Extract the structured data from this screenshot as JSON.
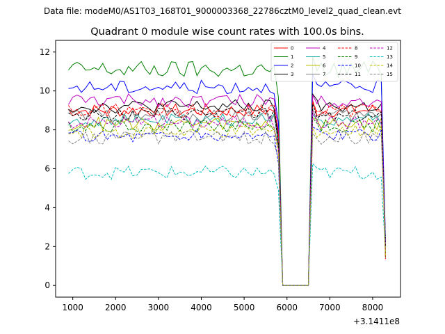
{
  "chart_data": {
    "type": "line",
    "suptitle": "Data file: modeM0/AS1T03_168T01_9000003368_22786cztM0_level2_quad_clean.evt",
    "title": "Quadrant 0 module wise count rates with 100.0s bins.",
    "xlabel": "",
    "ylabel": "",
    "x_offset_label": "+3.1411e8",
    "xlim": [
      600,
      8650
    ],
    "ylim": [
      -0.6,
      12.6
    ],
    "xticks": [
      1000,
      2000,
      3000,
      4000,
      5000,
      6000,
      7000,
      8000
    ],
    "yticks": [
      0,
      2,
      4,
      6,
      8,
      10,
      12
    ],
    "x_start": 900,
    "x_step": 100,
    "legend_position": "top-right",
    "gap_x": [
      5900,
      6000,
      6100,
      6200,
      6300,
      6400,
      6500
    ],
    "series": [
      {
        "name": "0",
        "color": "#ff0000",
        "dash": "solid",
        "level": 9.0
      },
      {
        "name": "1",
        "color": "#008000",
        "dash": "solid",
        "level": 11.1
      },
      {
        "name": "2",
        "color": "#0000ff",
        "dash": "solid",
        "level": 10.2
      },
      {
        "name": "3",
        "color": "#000000",
        "dash": "solid",
        "level": 9.2
      },
      {
        "name": "4",
        "color": "#bf00bf",
        "dash": "solid",
        "level": 9.5
      },
      {
        "name": "5",
        "color": "#20b2aa",
        "dash": "solid",
        "level": 8.5
      },
      {
        "name": "6",
        "color": "#bfbf00",
        "dash": "solid",
        "level": 8.3
      },
      {
        "name": "7",
        "color": "#808080",
        "dash": "solid",
        "level": 8.7
      },
      {
        "name": "8",
        "color": "#ff0000",
        "dash": "dashed",
        "level": 9.0
      },
      {
        "name": "9",
        "color": "#008000",
        "dash": "dashed",
        "level": 8.2
      },
      {
        "name": "10",
        "color": "#0000ff",
        "dash": "dashed",
        "level": 7.7
      },
      {
        "name": "11",
        "color": "#000000",
        "dash": "dashed",
        "level": 8.8
      },
      {
        "name": "12",
        "color": "#bf00bf",
        "dash": "dashed",
        "level": 8.4
      },
      {
        "name": "13",
        "color": "#00bfbf",
        "dash": "dashed",
        "level": 5.8
      },
      {
        "name": "14",
        "color": "#bfbf00",
        "dash": "dashed",
        "level": 7.9
      },
      {
        "name": "15",
        "color": "#808080",
        "dash": "dashed",
        "level": 7.6
      }
    ]
  }
}
